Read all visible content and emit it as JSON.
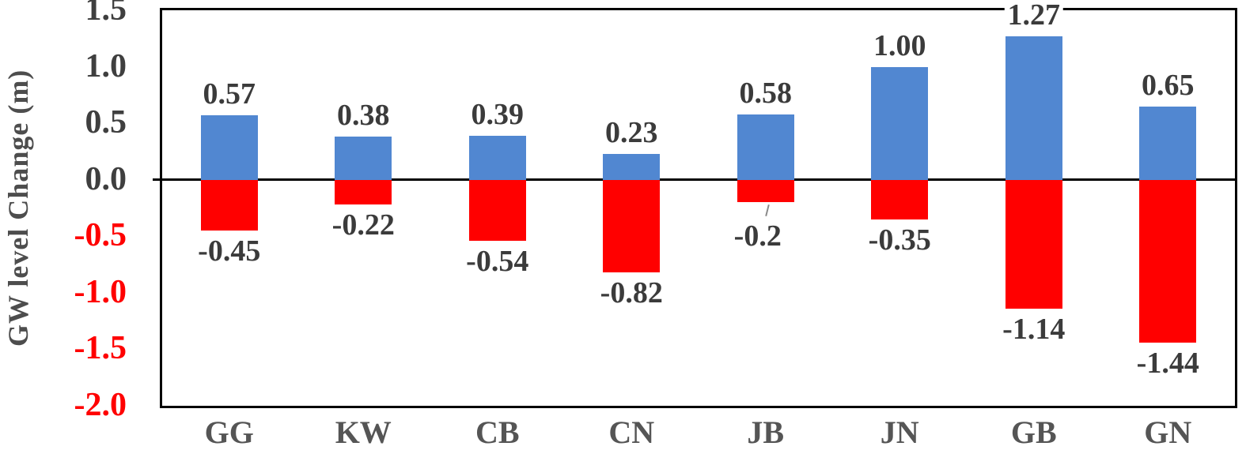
{
  "chart_data": {
    "type": "bar",
    "title": "",
    "xlabel": "",
    "ylabel": "GW level Change  (m)",
    "ylim": [
      -2.0,
      1.5
    ],
    "y_ticks": [
      {
        "value": 1.5,
        "label": "1.5"
      },
      {
        "value": 1.0,
        "label": "1.0"
      },
      {
        "value": 0.5,
        "label": "0.5"
      },
      {
        "value": 0.0,
        "label": "0.0"
      },
      {
        "value": -0.5,
        "label": "-0.5"
      },
      {
        "value": -1.0,
        "label": "-1.0"
      },
      {
        "value": -1.5,
        "label": "-1.5"
      },
      {
        "value": -2.0,
        "label": "-2.0"
      }
    ],
    "categories": [
      "GG",
      "KW",
      "CB",
      "CN",
      "JB",
      "JN",
      "GB",
      "GN"
    ],
    "series": [
      {
        "name": "positive-change",
        "color": "#5187D1",
        "values": [
          0.57,
          0.38,
          0.39,
          0.23,
          0.58,
          1.0,
          1.27,
          0.65
        ],
        "labels": [
          "0.57",
          "0.38",
          "0.39",
          "0.23",
          "0.58",
          "1.00",
          "1.27",
          "0.65"
        ]
      },
      {
        "name": "negative-change",
        "color": "#FF0000",
        "values": [
          -0.45,
          -0.22,
          -0.54,
          -0.82,
          -0.2,
          -0.35,
          -1.14,
          -1.44
        ],
        "labels": [
          "-0.45",
          "-0.22",
          "-0.54",
          "-0.82",
          "-0.2",
          "-0.35",
          "-1.14",
          "-1.44"
        ]
      }
    ],
    "leader_line_category": "JB",
    "grid": "off",
    "legend": "none"
  },
  "colors": {
    "positive_tick": "#3F3F3F",
    "negative_tick": "#FF0000",
    "data_label": "#3B3B3B",
    "category_label": "#555555",
    "axis_title": "#4D4D4D",
    "axis_line": "#000000",
    "plot_border": "#000000",
    "background": "#FFFFFF"
  }
}
